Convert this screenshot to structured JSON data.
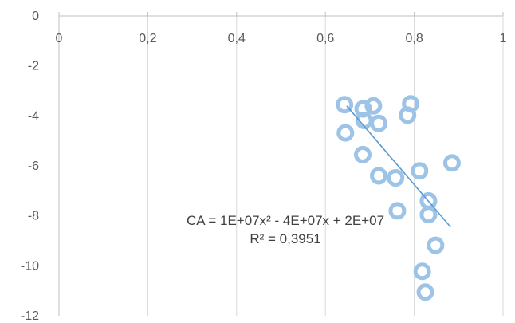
{
  "chart_data": {
    "type": "scatter",
    "title": "",
    "xlabel": "",
    "ylabel": "",
    "xlim": [
      0,
      1
    ],
    "ylim": [
      -12,
      0
    ],
    "x_tick_labels": [
      "0",
      "0,2",
      "0,4",
      "0,6",
      "0,8",
      "1"
    ],
    "y_tick_labels": [
      "0",
      "-2",
      "-4",
      "-6",
      "-8",
      "-10",
      "-12"
    ],
    "x_axis_position": "top",
    "grid": "vertical",
    "marker": "hollow ring",
    "series": [
      {
        "points": [
          {
            "x": 0.643,
            "y": -3.55
          },
          {
            "x": 0.685,
            "y": -3.72
          },
          {
            "x": 0.708,
            "y": -3.6
          },
          {
            "x": 0.792,
            "y": -3.52
          },
          {
            "x": 0.687,
            "y": -4.18
          },
          {
            "x": 0.72,
            "y": -4.3
          },
          {
            "x": 0.785,
            "y": -3.97
          },
          {
            "x": 0.645,
            "y": -4.68
          },
          {
            "x": 0.684,
            "y": -5.55
          },
          {
            "x": 0.72,
            "y": -6.4
          },
          {
            "x": 0.758,
            "y": -6.48
          },
          {
            "x": 0.812,
            "y": -6.2
          },
          {
            "x": 0.885,
            "y": -5.88
          },
          {
            "x": 0.832,
            "y": -7.4
          },
          {
            "x": 0.762,
            "y": -7.8
          },
          {
            "x": 0.832,
            "y": -7.95
          },
          {
            "x": 0.848,
            "y": -9.18
          },
          {
            "x": 0.818,
            "y": -10.22
          },
          {
            "x": 0.825,
            "y": -11.05
          }
        ]
      }
    ],
    "trendline": {
      "type": "polynomial order 2",
      "from": {
        "x": 0.648,
        "y": -3.6
      },
      "to": {
        "x": 0.882,
        "y": -8.45
      },
      "color": "#5b9bd5"
    },
    "annotations": {
      "equation": "CA = 1E+07x² - 4E+07x + 2E+07",
      "r_squared": "R² = 0,3951"
    },
    "colors": {
      "marker": "#9dc3e6",
      "trendline": "#5b9bd5",
      "grid": "#d9d9d9",
      "axis": "#bfbfbf",
      "text": "#595959"
    }
  }
}
